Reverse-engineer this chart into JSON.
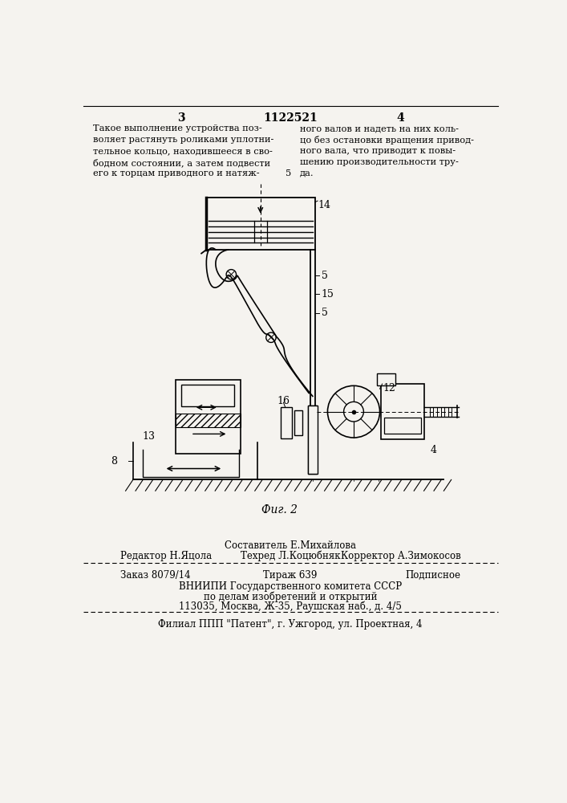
{
  "bg_color": "#f5f3ef",
  "page_number_left": "3",
  "page_title_center": "1122521",
  "page_number_right": "4",
  "left_column_text": [
    "Такое выполнение устройства поз-",
    "воляет растянуть роликами уплотни-",
    "тельное кольцо, находившееся в сво-",
    "бодном состоянии, а затем подвести",
    "его к торцам приводного и натяж-"
  ],
  "left_column_note": "5",
  "right_column_text": [
    "ного валов и надеть на них коль-",
    "цо без остановки вращения привод-",
    "ного вала, что приводит к повы-",
    "шению производительности тру-",
    "да."
  ],
  "fig_label": "Фиг. 2",
  "editor_line1_center": "Составитель Е.Михайлова",
  "editor_line2_left": "Редактор Н.Яцола",
  "editor_line2_center": "Техред Л.Коцюбняк",
  "editor_line2_right": "Корректор А.Зимокосов",
  "order_left": "Заказ 8079/14",
  "order_center": "Тираж 639",
  "order_right": "Подписное",
  "vnipi_line1": "ВНИИПИ Государственного комитета СССР",
  "vnipi_line2": "по делам изобретений и открытий",
  "vnipi_line3": "113035, Москва, Ж-35, Раушская наб., д. 4/5",
  "filial_line": "Филиал ППП \"Патент\", г. Ужгород, ул. Проектная, 4",
  "label_4": "4",
  "label_5_1": "5",
  "label_5_2": "5",
  "label_8": "8",
  "label_12": "12",
  "label_13": "13",
  "label_14": "14",
  "label_15": "15",
  "label_16": "16"
}
